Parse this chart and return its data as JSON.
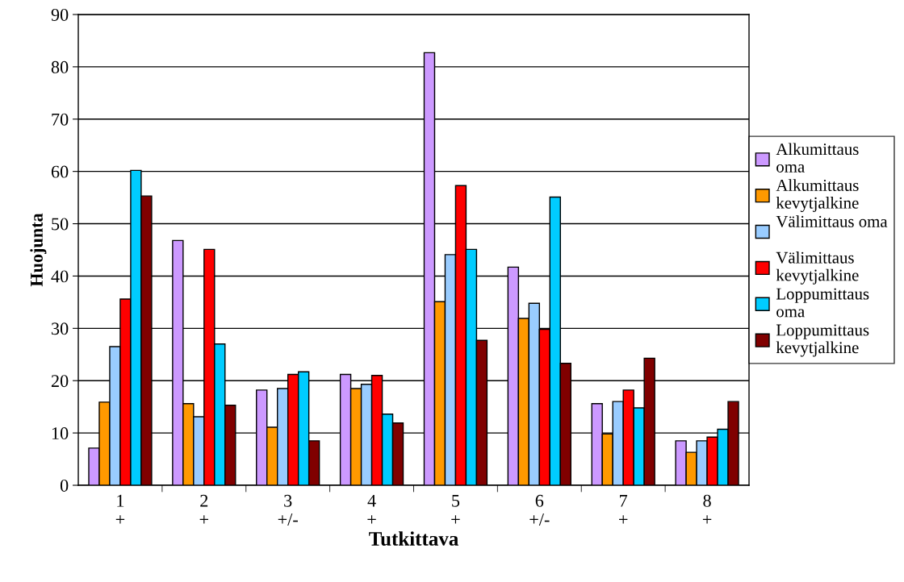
{
  "chart_data": {
    "type": "bar",
    "xlabel": "Tutkittava",
    "ylabel": "Huojunta",
    "categories": [
      "1\n+",
      "2\n+",
      "3\n+/-",
      "4\n+",
      "5\n+",
      "6\n+/-",
      "7\n+",
      "8\n+"
    ],
    "series": [
      {
        "name": "Alkumittaus\noma",
        "color": "#cc99ff",
        "values": [
          7.1,
          46.8,
          18.2,
          21.2,
          82.7,
          41.7,
          15.6,
          8.5
        ]
      },
      {
        "name": "Alkumittaus\nkevytjalkine",
        "color": "#ff9900",
        "values": [
          15.9,
          15.6,
          11.1,
          18.5,
          35.1,
          31.9,
          9.8,
          6.3
        ]
      },
      {
        "name": "Välimittaus oma\n",
        "color": "#99ccff",
        "values": [
          26.5,
          13.1,
          18.5,
          19.3,
          44.1,
          34.8,
          16.0,
          8.5
        ]
      },
      {
        "name": "Välimittaus\nkevytjalkine",
        "color": "#ff0000",
        "values": [
          35.6,
          45.1,
          21.2,
          21.0,
          57.3,
          29.8,
          18.2,
          9.2
        ]
      },
      {
        "name": "Loppumittaus\noma",
        "color": "#00ccff",
        "values": [
          60.2,
          27.0,
          21.7,
          13.6,
          45.1,
          55.1,
          14.8,
          10.7
        ]
      },
      {
        "name": "Loppumittaus\nkevytjalkine",
        "color": "#800000",
        "values": [
          55.3,
          15.3,
          8.5,
          11.9,
          27.7,
          23.3,
          24.3,
          16.0
        ]
      }
    ],
    "ylim": [
      0,
      90
    ],
    "yticks": [
      0,
      10,
      20,
      30,
      40,
      50,
      60,
      70,
      80,
      90
    ],
    "grid": "y",
    "legend": "right"
  }
}
